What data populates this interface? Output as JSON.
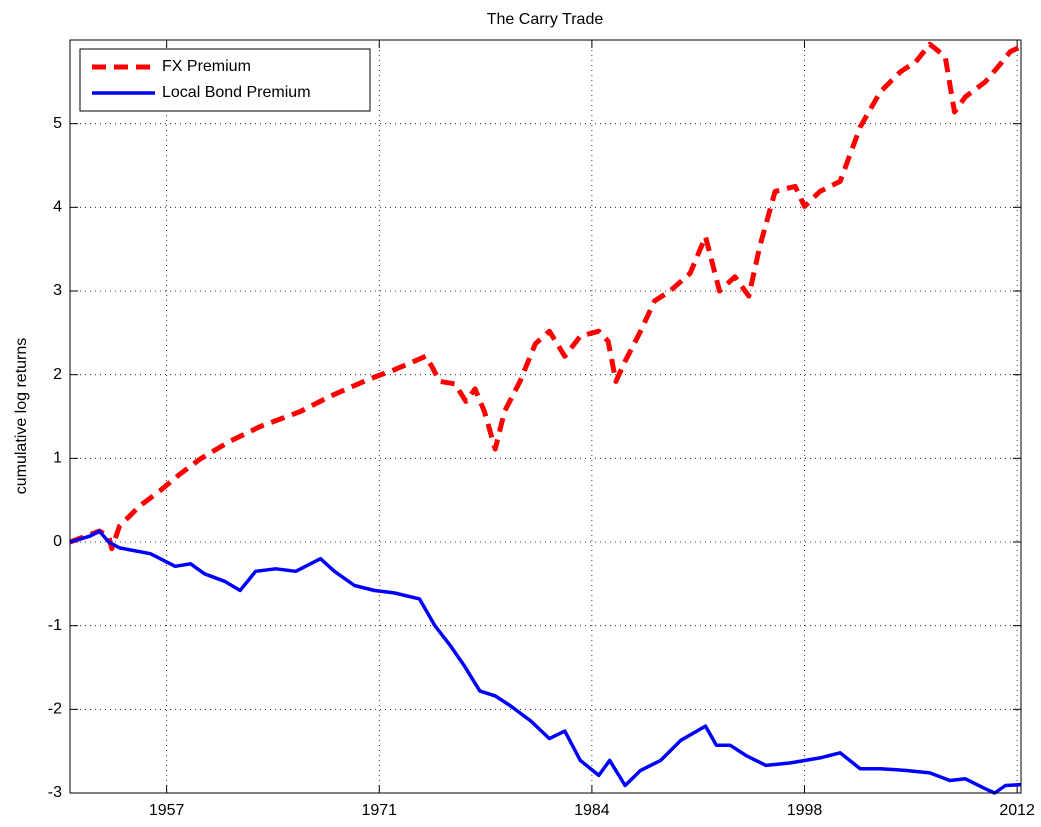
{
  "chart_data": {
    "type": "line",
    "title": "The Carry Trade",
    "y_label": "cumulative log returns",
    "xlim": [
      1951,
      2012.5
    ],
    "ylim": [
      -3,
      6
    ],
    "xticks": [
      {
        "value": 1957.25,
        "label": "1957"
      },
      {
        "value": 1971,
        "label": "1971"
      },
      {
        "value": 1984.75,
        "label": "1984"
      },
      {
        "value": 1998.5,
        "label": "1998"
      },
      {
        "value": 2012.25,
        "label": "2012"
      }
    ],
    "yticks": [
      -3,
      -2,
      -1,
      0,
      1,
      2,
      3,
      4,
      5
    ],
    "grid": true,
    "legend": "upper-left",
    "series": [
      {
        "name": "FX Premium",
        "color": "#ff0000",
        "dash": true,
        "x": [
          1951.0,
          1952.9,
          1953.5,
          1953.7,
          1954.2,
          1955.5,
          1956.8,
          1958.1,
          1959.4,
          1961.3,
          1963.3,
          1965.9,
          1967.8,
          1970.4,
          1972.0,
          1973.0,
          1974.0,
          1974.4,
          1974.9,
          1975.9,
          1976.6,
          1977.2,
          1977.8,
          1978.5,
          1979.1,
          1980.1,
          1981.1,
          1982.0,
          1983.0,
          1984.0,
          1985.2,
          1985.8,
          1986.3,
          1986.9,
          1987.9,
          1988.8,
          1989.8,
          1991.1,
          1992.1,
          1993.0,
          1994.0,
          1994.9,
          1995.6,
          1996.6,
          1997.9,
          1998.5,
          1999.5,
          2000.8,
          2002.1,
          2003.4,
          2004.7,
          2005.7,
          2006.6,
          2007.6,
          2008.2,
          2008.9,
          2010.2,
          2011.2,
          2011.8,
          2012.5
        ],
        "values": [
          0,
          0.13,
          0.07,
          -0.08,
          0.19,
          0.43,
          0.61,
          0.81,
          0.99,
          1.2,
          1.38,
          1.56,
          1.74,
          1.95,
          2.06,
          2.14,
          2.22,
          2.1,
          1.92,
          1.89,
          1.68,
          1.83,
          1.56,
          1.11,
          1.56,
          1.92,
          2.37,
          2.52,
          2.22,
          2.46,
          2.52,
          2.4,
          1.92,
          2.16,
          2.52,
          2.88,
          3.0,
          3.21,
          3.65,
          3.0,
          3.17,
          2.94,
          3.53,
          4.19,
          4.25,
          4.01,
          4.19,
          4.31,
          4.96,
          5.38,
          5.62,
          5.74,
          5.95,
          5.8,
          5.14,
          5.32,
          5.5,
          5.72,
          5.86,
          5.92
        ]
      },
      {
        "name": "Local Bond Premium",
        "color": "#0000ff",
        "dash": false,
        "x": [
          1951.0,
          1952.3,
          1952.9,
          1953.5,
          1954.2,
          1956.2,
          1957.8,
          1958.8,
          1959.7,
          1961.0,
          1962.0,
          1963.0,
          1964.3,
          1965.6,
          1967.2,
          1968.1,
          1969.4,
          1970.7,
          1972.0,
          1973.6,
          1974.6,
          1975.6,
          1976.5,
          1977.5,
          1978.5,
          1979.5,
          1980.8,
          1982.0,
          1983.0,
          1984.0,
          1985.2,
          1985.9,
          1986.9,
          1987.9,
          1989.2,
          1990.5,
          1992.1,
          1992.8,
          1993.7,
          1994.7,
          1996.0,
          1997.6,
          1999.5,
          2000.8,
          2002.1,
          2003.4,
          2005.0,
          2006.6,
          2007.9,
          2008.9,
          2010.2,
          2010.8,
          2011.5,
          2012.5
        ],
        "values": [
          0,
          0.07,
          0.13,
          0,
          -0.07,
          -0.14,
          -0.29,
          -0.26,
          -0.38,
          -0.47,
          -0.58,
          -0.35,
          -0.32,
          -0.35,
          -0.2,
          -0.35,
          -0.52,
          -0.58,
          -0.61,
          -0.68,
          -1.0,
          -1.24,
          -1.48,
          -1.78,
          -1.84,
          -1.96,
          -2.14,
          -2.35,
          -2.26,
          -2.61,
          -2.79,
          -2.61,
          -2.91,
          -2.73,
          -2.61,
          -2.37,
          -2.2,
          -2.43,
          -2.43,
          -2.55,
          -2.67,
          -2.64,
          -2.58,
          -2.52,
          -2.71,
          -2.71,
          -2.73,
          -2.76,
          -2.85,
          -2.83,
          -2.95,
          -3.0,
          -2.91,
          -2.9
        ]
      }
    ]
  }
}
